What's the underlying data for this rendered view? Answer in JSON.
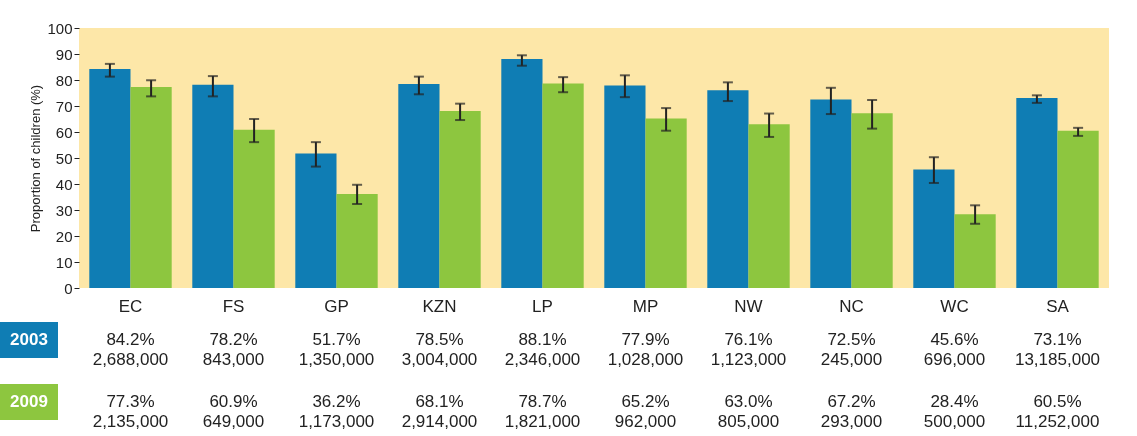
{
  "chart_data": {
    "type": "bar",
    "ylabel": "Proportion of children (%)",
    "categories": [
      "EC",
      "FS",
      "GP",
      "KZN",
      "LP",
      "MP",
      "NW",
      "NC",
      "WC",
      "SA"
    ],
    "ylim": [
      0,
      100
    ],
    "yticks": [
      0,
      10,
      20,
      30,
      40,
      50,
      60,
      70,
      80,
      90,
      100
    ],
    "grid": false,
    "legend": "bottom left",
    "series": [
      {
        "name": "2003",
        "color": "#0f7db4",
        "values": [
          84.2,
          78.2,
          51.7,
          78.5,
          88.1,
          77.9,
          76.1,
          72.5,
          45.6,
          73.1
        ],
        "errors": [
          [
            81.3,
            86.2
          ],
          [
            73.7,
            81.5
          ],
          [
            46.7,
            56.1
          ],
          [
            74.5,
            81.3
          ],
          [
            85.5,
            89.5
          ],
          [
            73.4,
            81.8
          ],
          [
            71.9,
            79.1
          ],
          [
            66.9,
            77.0
          ],
          [
            40.4,
            50.3
          ],
          [
            71.2,
            74.1
          ]
        ],
        "value_labels": [
          "84.2%\n2,688,000",
          "78.2%\n843,000",
          "51.7%\n1,350,000",
          "78.5%\n3,004,000",
          "88.1%\n2,346,000",
          "77.9%\n1,028,000",
          "76.1%\n1,123,000",
          "72.5%\n245,000",
          "45.6%\n696,000",
          "73.1%\n13,185,000"
        ]
      },
      {
        "name": "2009",
        "color": "#8dc63f",
        "values": [
          77.3,
          60.9,
          36.2,
          68.1,
          78.7,
          65.2,
          63.0,
          67.2,
          28.4,
          60.5
        ],
        "errors": [
          [
            73.7,
            79.9
          ],
          [
            56.1,
            65.0
          ],
          [
            32.3,
            39.7
          ],
          [
            64.6,
            70.9
          ],
          [
            75.3,
            81.1
          ],
          [
            60.5,
            69.2
          ],
          [
            58.1,
            67.1
          ],
          [
            61.3,
            72.3
          ],
          [
            24.7,
            31.8
          ],
          [
            58.5,
            61.6
          ]
        ],
        "value_labels": [
          "77.3%\n2,135,000",
          "60.9%\n649,000",
          "36.2%\n1,173,000",
          "68.1%\n2,914,000",
          "78.7%\n1,821,000",
          "65.2%\n962,000",
          "63.0%\n805,000",
          "67.2%\n293,000",
          "28.4%\n500,000",
          "60.5%\n11,252,000"
        ]
      }
    ]
  }
}
